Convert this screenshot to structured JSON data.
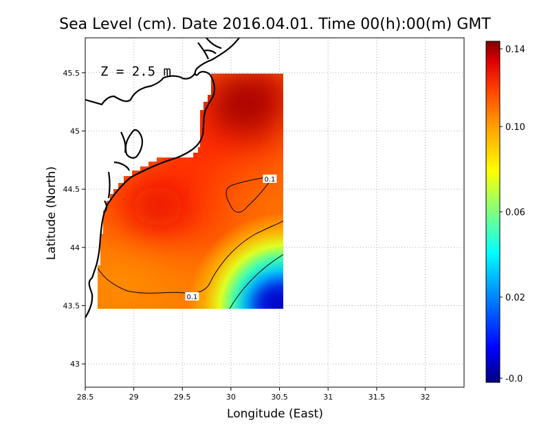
{
  "chart_data": {
    "type": "heatmap",
    "title": "Sea Level (cm). Date 2016.04.01. Time 00(h):00(m) GMT",
    "xlabel": "Longitude (East)",
    "ylabel": "Latitude (North)",
    "annotation": "Z = 2.5 m",
    "xlim": [
      28.5,
      32.4
    ],
    "ylim": [
      42.8,
      45.8
    ],
    "x_ticks": [
      "28.5",
      "29",
      "29.5",
      "30",
      "30.5",
      "31",
      "31.5",
      "32"
    ],
    "y_ticks": [
      "43",
      "43.5",
      "44",
      "44.5",
      "45",
      "45.5"
    ],
    "grid": true,
    "colorbar": {
      "min": -0.02,
      "max": 0.14,
      "ticks": [
        "0.14",
        "0.10",
        "0.06",
        "0.02",
        "-0.0"
      ],
      "colors": [
        "#000080",
        "#0000ff",
        "#00a0ff",
        "#00ffff",
        "#80ff80",
        "#ffff00",
        "#ffa000",
        "#ff4000",
        "#e00000",
        "#800000"
      ]
    },
    "contour_labels": [
      {
        "text": "0.1",
        "lon": 30.4,
        "lat": 44.59
      },
      {
        "text": "0.1",
        "lon": 29.6,
        "lat": 43.58
      }
    ],
    "field_region": {
      "lon_min": 28.62,
      "lon_max": 30.55,
      "lat_min": 43.48,
      "lat_max": 45.5
    }
  }
}
